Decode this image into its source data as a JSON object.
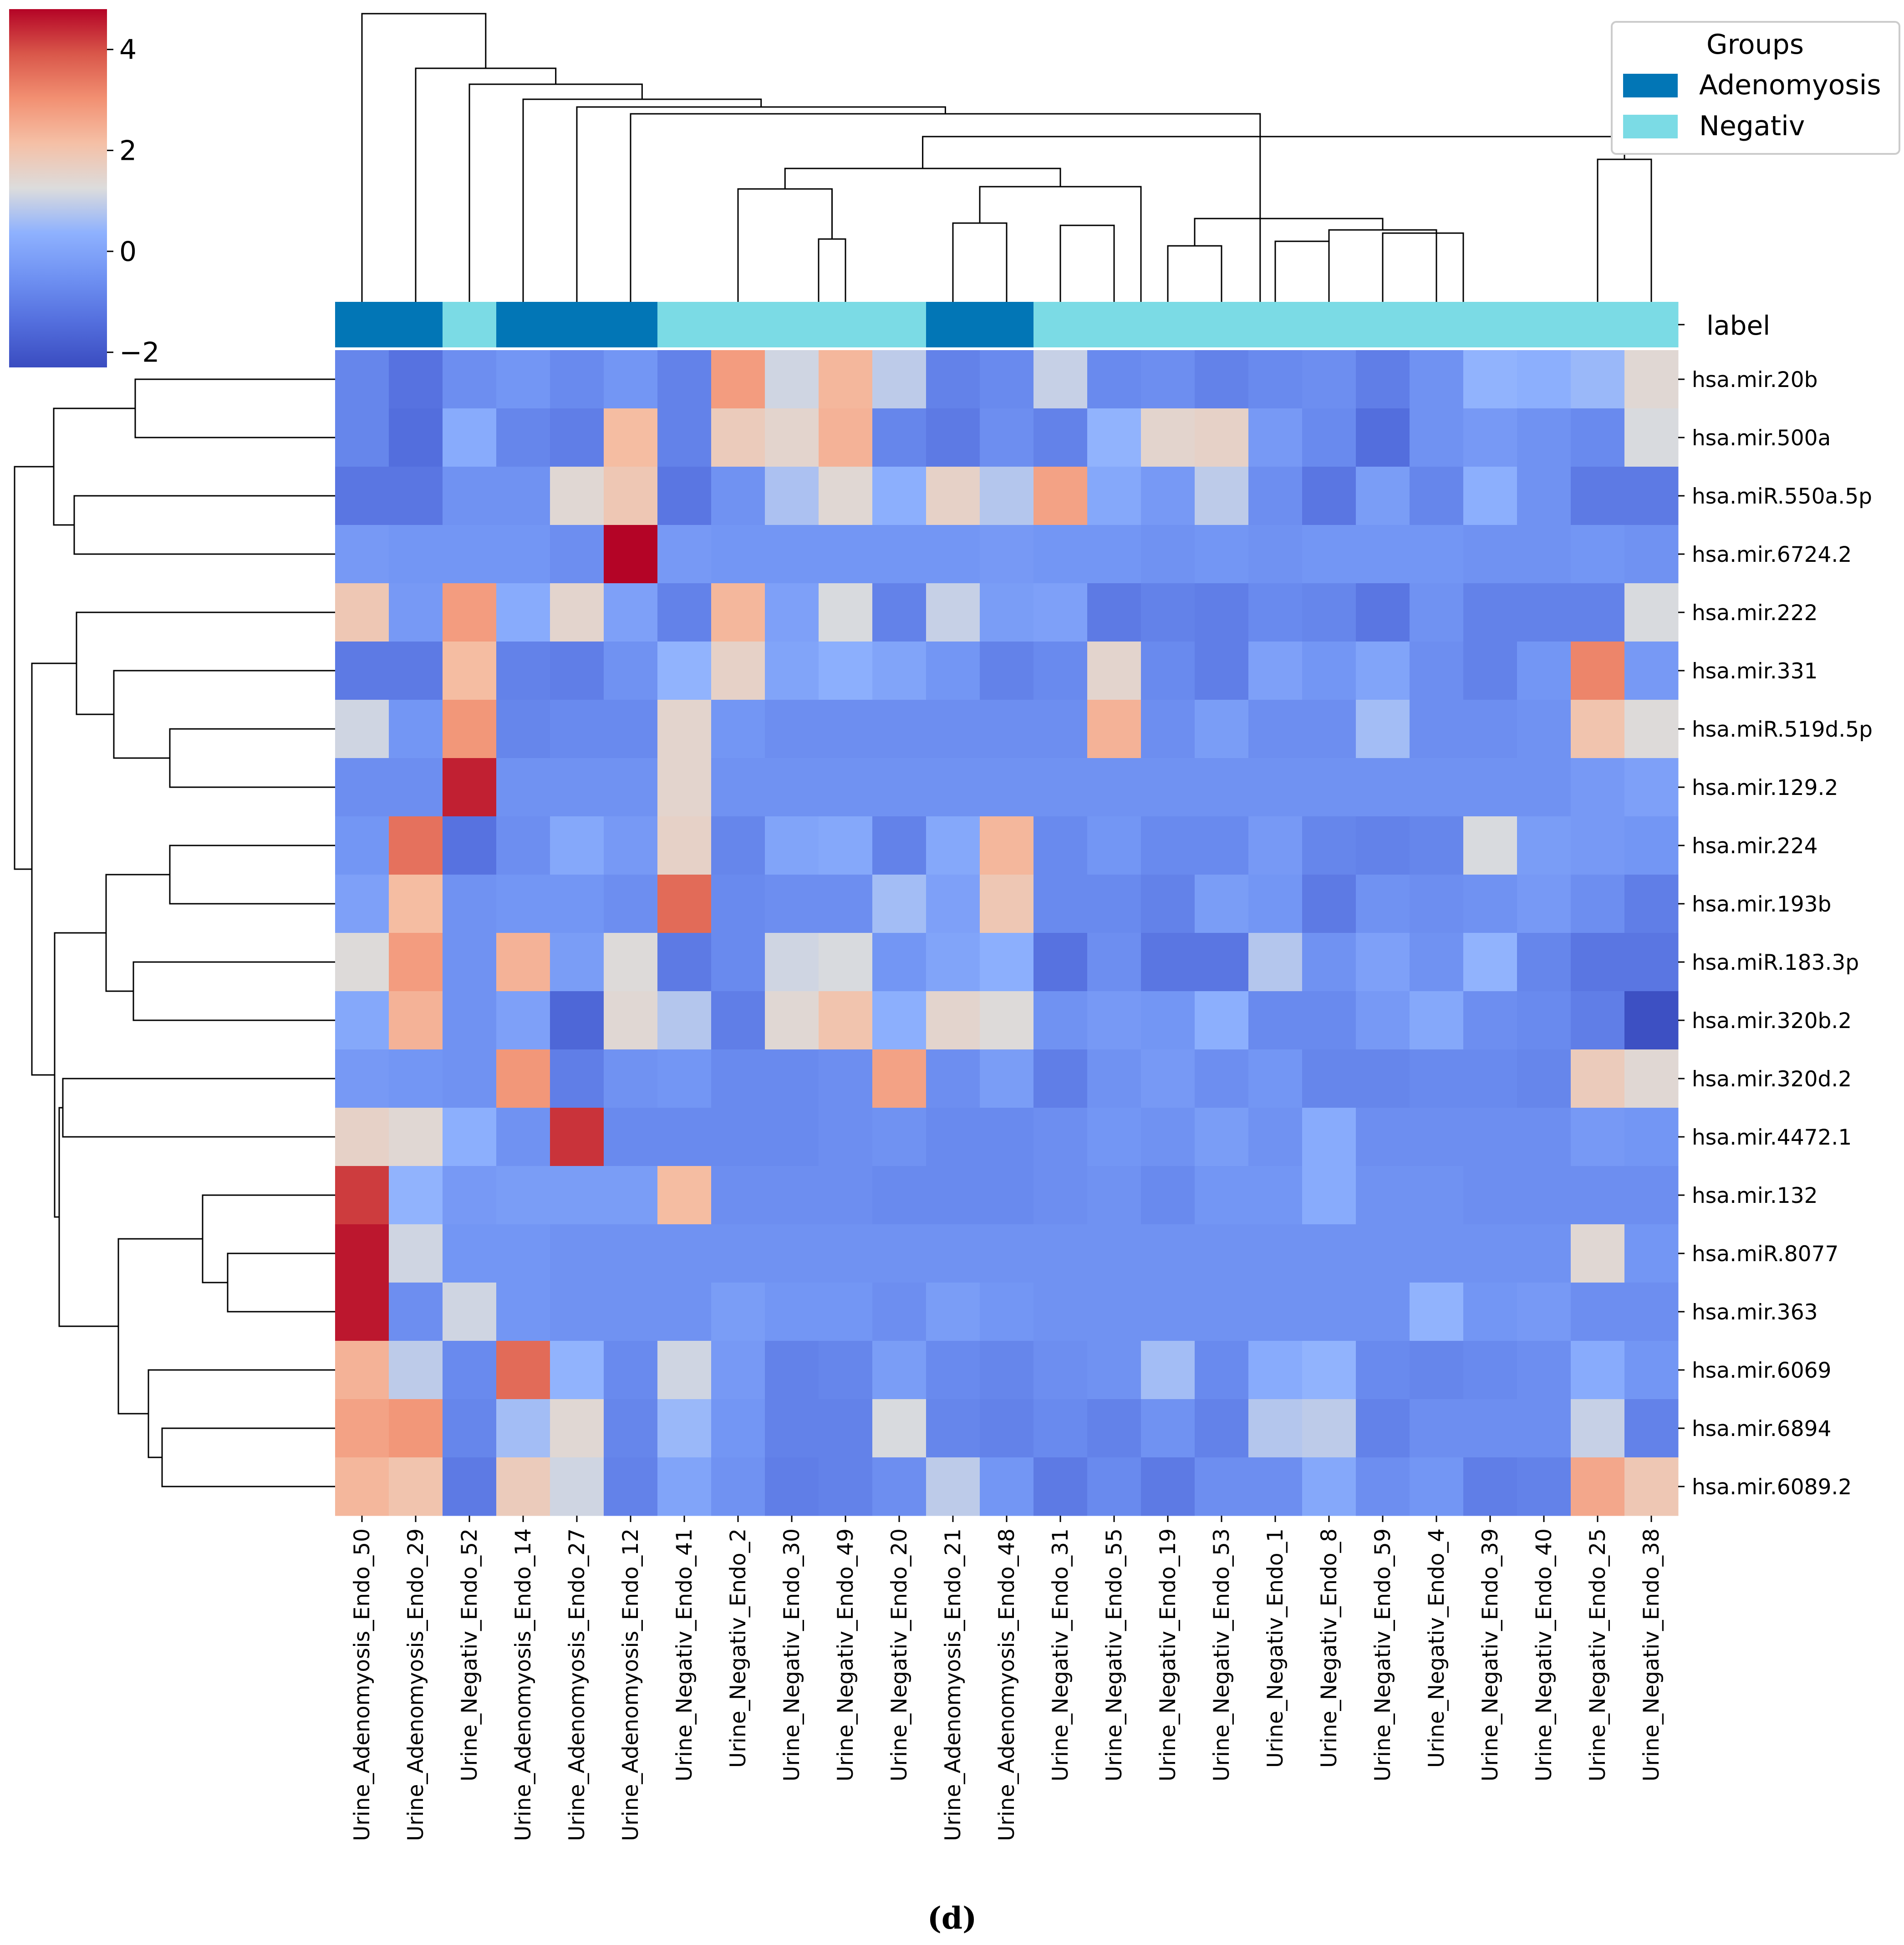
{
  "chart_data": {
    "type": "heatmap",
    "title": "",
    "colormap": "coolwarm",
    "colorbar": {
      "min": -2.3,
      "max": 4.8,
      "ticks": [
        4,
        2,
        0,
        -2
      ],
      "tick_labels": [
        "4",
        "2",
        "0",
        "−2"
      ]
    },
    "columns": [
      "Urine_Adenomyosis_Endo_50",
      "Urine_Adenomyosis_Endo_29",
      "Urine_Negativ_Endo_52",
      "Urine_Adenomyosis_Endo_14",
      "Urine_Adenomyosis_Endo_27",
      "Urine_Adenomyosis_Endo_12",
      "Urine_Negativ_Endo_41",
      "Urine_Negativ_Endo_2",
      "Urine_Negativ_Endo_30",
      "Urine_Negativ_Endo_49",
      "Urine_Negativ_Endo_20",
      "Urine_Adenomyosis_Endo_21",
      "Urine_Adenomyosis_Endo_48",
      "Urine_Negativ_Endo_31",
      "Urine_Negativ_Endo_55",
      "Urine_Negativ_Endo_19",
      "Urine_Negativ_Endo_53",
      "Urine_Negativ_Endo_1",
      "Urine_Negativ_Endo_8",
      "Urine_Negativ_Endo_59",
      "Urine_Negativ_Endo_4",
      "Urine_Negativ_Endo_39",
      "Urine_Negativ_Endo_40",
      "Urine_Negativ_Endo_25",
      "Urine_Negativ_Endo_38"
    ],
    "column_groups": [
      "Adenomyosis",
      "Adenomyosis",
      "Negativ",
      "Adenomyosis",
      "Adenomyosis",
      "Adenomyosis",
      "Negativ",
      "Negativ",
      "Negativ",
      "Negativ",
      "Negativ",
      "Adenomyosis",
      "Adenomyosis",
      "Negativ",
      "Negativ",
      "Negativ",
      "Negativ",
      "Negativ",
      "Negativ",
      "Negativ",
      "Negativ",
      "Negativ",
      "Negativ",
      "Negativ",
      "Negativ"
    ],
    "rows": [
      "hsa.mir.20b",
      "hsa.mir.500a",
      "hsa.miR.550a.5p",
      "hsa.mir.6724.2",
      "hsa.mir.222",
      "hsa.mir.331",
      "hsa.miR.519d.5p",
      "hsa.mir.129.2",
      "hsa.mir.224",
      "hsa.mir.193b",
      "hsa.miR.183.3p",
      "hsa.mir.320b.2",
      "hsa.mir.320d.2",
      "hsa.mir.4472.1",
      "hsa.mir.132",
      "hsa.miR.8077",
      "hsa.mir.363",
      "hsa.mir.6069",
      "hsa.mir.6894",
      "hsa.mir.6089.2"
    ],
    "values": [
      [
        -0.8,
        -1.3,
        -0.6,
        -0.4,
        -0.7,
        -0.4,
        -0.9,
        2.8,
        1.1,
        2.3,
        0.9,
        -0.9,
        -0.7,
        1.0,
        -0.7,
        -0.6,
        -0.9,
        -0.7,
        -0.6,
        -1.0,
        -0.5,
        0.4,
        0.3,
        0.5,
        1.4
      ],
      [
        -0.8,
        -1.4,
        0.2,
        -0.8,
        -1.0,
        2.2,
        -0.9,
        1.8,
        1.5,
        2.4,
        -0.8,
        -1.1,
        -0.6,
        -0.9,
        0.4,
        1.5,
        1.6,
        -0.3,
        -0.7,
        -1.4,
        -0.5,
        -0.3,
        -0.5,
        -0.7,
        1.2
      ],
      [
        -1.2,
        -1.2,
        -0.5,
        -0.5,
        1.4,
        1.9,
        -1.2,
        -0.5,
        0.7,
        1.4,
        0.3,
        1.6,
        0.8,
        2.7,
        0.1,
        -0.3,
        0.9,
        -0.6,
        -1.2,
        -0.2,
        -0.8,
        0.3,
        -0.5,
        -1.1,
        -1.1
      ],
      [
        -0.3,
        -0.4,
        -0.4,
        -0.4,
        -0.6,
        4.8,
        -0.3,
        -0.4,
        -0.4,
        -0.4,
        -0.4,
        -0.4,
        -0.3,
        -0.4,
        -0.4,
        -0.5,
        -0.4,
        -0.5,
        -0.4,
        -0.4,
        -0.4,
        -0.5,
        -0.5,
        -0.4,
        -0.5
      ],
      [
        1.9,
        -0.3,
        2.8,
        0.2,
        1.5,
        -0.1,
        -0.9,
        2.3,
        -0.1,
        1.2,
        -0.9,
        1.0,
        -0.2,
        -0.1,
        -1.1,
        -0.9,
        -1.0,
        -0.7,
        -0.8,
        -1.2,
        -0.5,
        -0.9,
        -0.9,
        -0.9,
        1.2
      ],
      [
        -1.1,
        -1.1,
        2.2,
        -0.9,
        -1.0,
        -0.5,
        0.4,
        1.6,
        0.0,
        0.3,
        0.0,
        -0.4,
        -0.9,
        -0.7,
        1.5,
        -0.7,
        -1.0,
        -0.1,
        -0.4,
        0.0,
        -0.6,
        -0.9,
        -0.4,
        3.2,
        -0.3
      ],
      [
        1.1,
        -0.4,
        2.9,
        -0.8,
        -0.7,
        -0.7,
        1.5,
        -0.4,
        -0.6,
        -0.6,
        -0.6,
        -0.6,
        -0.6,
        -0.6,
        2.4,
        -0.6,
        -0.2,
        -0.6,
        -0.6,
        0.6,
        -0.6,
        -0.6,
        -0.5,
        2.0,
        1.3
      ],
      [
        -0.6,
        -0.6,
        4.5,
        -0.5,
        -0.5,
        -0.5,
        1.5,
        -0.5,
        -0.5,
        -0.5,
        -0.5,
        -0.5,
        -0.5,
        -0.5,
        -0.5,
        -0.5,
        -0.5,
        -0.5,
        -0.5,
        -0.5,
        -0.5,
        -0.5,
        -0.5,
        -0.3,
        -0.1
      ],
      [
        -0.4,
        3.5,
        -1.3,
        -0.6,
        0.1,
        -0.3,
        1.6,
        -0.8,
        0.0,
        0.1,
        -0.9,
        0.1,
        2.3,
        -0.7,
        -0.4,
        -0.7,
        -0.7,
        -0.3,
        -0.8,
        -0.9,
        -0.8,
        1.2,
        -0.2,
        -0.3,
        -0.4
      ],
      [
        -0.1,
        2.2,
        -0.5,
        -0.4,
        -0.4,
        -0.6,
        3.6,
        -0.7,
        -0.6,
        -0.6,
        0.6,
        -0.1,
        1.9,
        -0.7,
        -0.7,
        -0.9,
        -0.2,
        -0.4,
        -1.1,
        -0.5,
        -0.6,
        -0.5,
        -0.3,
        -0.6,
        -1.0
      ],
      [
        1.3,
        2.8,
        -0.5,
        2.4,
        -0.2,
        1.3,
        -1.1,
        -0.7,
        1.1,
        1.2,
        -0.4,
        0.0,
        0.3,
        -1.3,
        -0.6,
        -1.2,
        -1.2,
        0.8,
        -0.5,
        -0.1,
        -0.5,
        0.4,
        -0.8,
        -1.2,
        -1.2
      ],
      [
        0.1,
        2.4,
        -0.5,
        -0.1,
        -1.6,
        1.4,
        0.8,
        -1.0,
        1.4,
        2.0,
        0.3,
        1.5,
        1.3,
        -0.5,
        -0.3,
        -0.4,
        0.3,
        -0.7,
        -0.7,
        -0.3,
        0.1,
        -0.6,
        -0.7,
        -1.0,
        -2.2
      ],
      [
        -0.3,
        -0.4,
        -0.5,
        2.9,
        -1.0,
        -0.5,
        -0.4,
        -0.7,
        -0.7,
        -0.6,
        2.7,
        -0.6,
        -0.2,
        -1.0,
        -0.5,
        -0.3,
        -0.6,
        -0.4,
        -0.8,
        -0.8,
        -0.7,
        -0.7,
        -0.8,
        1.8,
        1.4
      ],
      [
        1.6,
        1.4,
        0.3,
        -0.5,
        4.3,
        -0.7,
        -0.7,
        -0.7,
        -0.7,
        -0.6,
        -0.5,
        -0.7,
        -0.7,
        -0.6,
        -0.4,
        -0.5,
        -0.2,
        -0.5,
        0.2,
        -0.6,
        -0.6,
        -0.6,
        -0.6,
        -0.3,
        -0.4
      ],
      [
        4.2,
        0.4,
        -0.3,
        -0.2,
        -0.2,
        -0.2,
        2.2,
        -0.6,
        -0.6,
        -0.6,
        -0.7,
        -0.7,
        -0.7,
        -0.6,
        -0.5,
        -0.7,
        -0.4,
        -0.4,
        0.2,
        -0.5,
        -0.5,
        -0.6,
        -0.6,
        -0.6,
        -0.6
      ],
      [
        4.6,
        1.1,
        -0.4,
        -0.4,
        -0.5,
        -0.5,
        -0.5,
        -0.5,
        -0.5,
        -0.5,
        -0.5,
        -0.5,
        -0.5,
        -0.5,
        -0.5,
        -0.5,
        -0.5,
        -0.5,
        -0.5,
        -0.5,
        -0.5,
        -0.5,
        -0.5,
        1.4,
        -0.4
      ],
      [
        4.6,
        -0.6,
        1.1,
        -0.4,
        -0.5,
        -0.5,
        -0.5,
        -0.2,
        -0.4,
        -0.4,
        -0.6,
        -0.2,
        -0.4,
        -0.5,
        -0.5,
        -0.5,
        -0.5,
        -0.5,
        -0.5,
        -0.5,
        0.4,
        -0.4,
        -0.3,
        -0.6,
        -0.6
      ],
      [
        2.4,
        0.9,
        -0.7,
        3.6,
        0.4,
        -0.7,
        1.1,
        -0.3,
        -0.9,
        -0.8,
        -0.2,
        -0.7,
        -0.8,
        -0.6,
        -0.5,
        0.6,
        -0.7,
        0.2,
        0.4,
        -0.7,
        -0.8,
        -0.7,
        -0.6,
        0.2,
        -0.4
      ],
      [
        2.7,
        2.9,
        -0.8,
        0.6,
        1.4,
        -0.8,
        0.5,
        -0.4,
        -0.9,
        -0.9,
        1.2,
        -0.8,
        -0.9,
        -0.7,
        -0.9,
        -0.5,
        -0.9,
        0.8,
        0.9,
        -0.9,
        -0.6,
        -0.6,
        -0.6,
        1.0,
        -0.9
      ],
      [
        2.3,
        2.0,
        -1.1,
        1.8,
        1.1,
        -0.9,
        0.0,
        -0.5,
        -1.0,
        -0.9,
        -0.6,
        0.9,
        -0.4,
        -1.1,
        -0.7,
        -1.1,
        -0.6,
        -0.6,
        0.1,
        -0.6,
        -0.4,
        -1.0,
        -0.9,
        2.6,
        1.9
      ]
    ],
    "annotation_row_label": "label",
    "legend": {
      "title": "Groups",
      "entries": [
        "Adenomyosis",
        "Negativ"
      ],
      "location": "top-right"
    }
  },
  "colors": {
    "Adenomyosis": "#0276b6",
    "Negativ": "#7bdbe5",
    "line": "#000000",
    "cmap_low": "#3a4cc0",
    "cmap_mid": "#dcdcdc",
    "cmap_high": "#b40426"
  },
  "caption": "(d)"
}
